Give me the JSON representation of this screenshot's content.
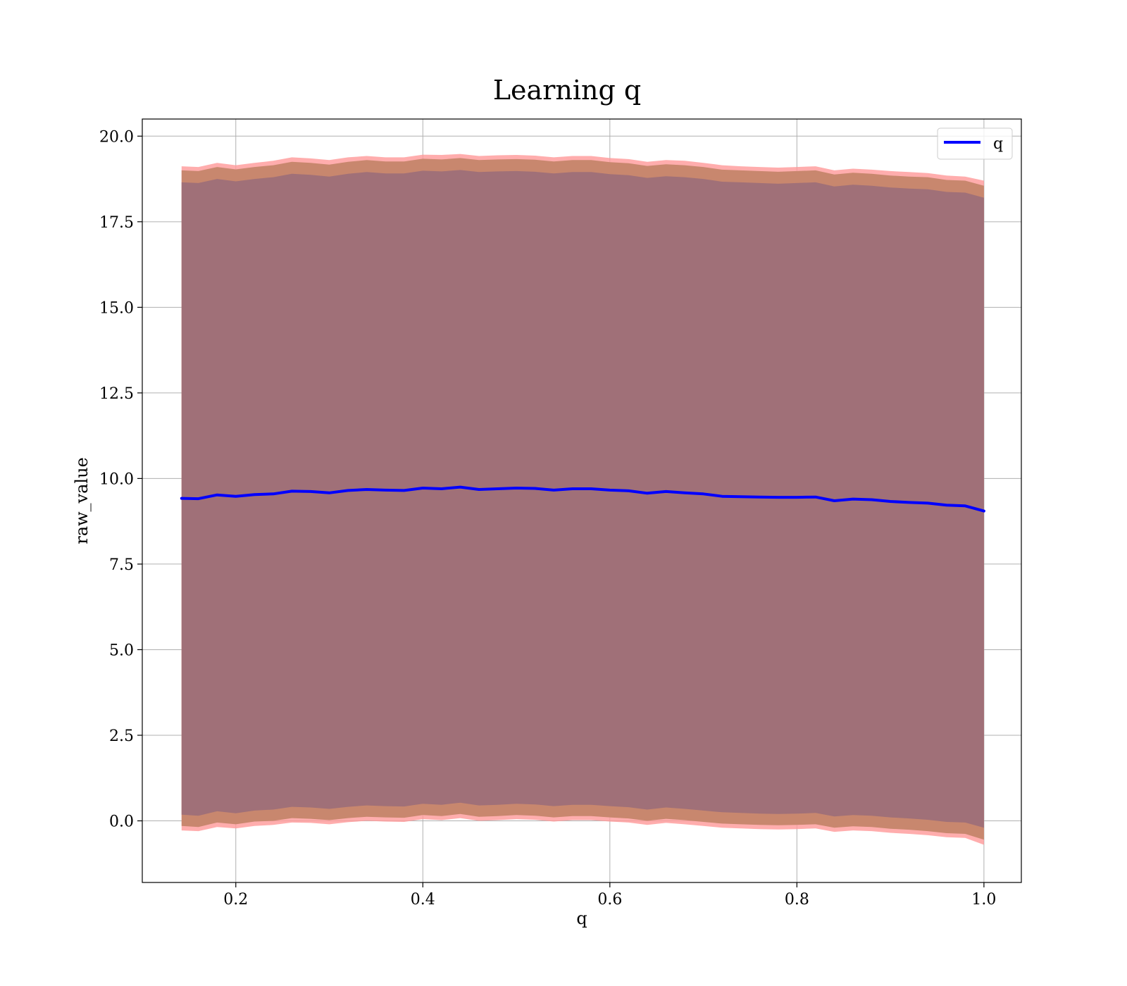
{
  "chart_data": {
    "type": "area",
    "title": "Learning q",
    "xlabel": "q",
    "ylabel": "raw_value",
    "xlim": [
      0.1,
      1.04
    ],
    "ylim": [
      -1.8,
      20.5
    ],
    "xticks": [
      0.2,
      0.4,
      0.6,
      0.8,
      1.0
    ],
    "xtick_labels": [
      "0.2",
      "0.4",
      "0.6",
      "0.8",
      "1.0"
    ],
    "yticks": [
      0.0,
      2.5,
      5.0,
      7.5,
      10.0,
      12.5,
      15.0,
      17.5,
      20.0
    ],
    "ytick_labels": [
      "0.0",
      "2.5",
      "5.0",
      "7.5",
      "10.0",
      "12.5",
      "15.0",
      "17.5",
      "20.0"
    ],
    "grid": true,
    "legend": {
      "position": "top-right",
      "entries": [
        "q"
      ]
    },
    "colors": {
      "line": "#0000ff",
      "outer_band": "#ff9999",
      "middle_band": "#c8876e",
      "inner_band": "#a07078",
      "grid": "#b0b0b0"
    },
    "x": [
      0.142,
      0.16,
      0.18,
      0.2,
      0.22,
      0.24,
      0.26,
      0.28,
      0.3,
      0.32,
      0.34,
      0.36,
      0.38,
      0.4,
      0.42,
      0.44,
      0.46,
      0.48,
      0.5,
      0.52,
      0.54,
      0.56,
      0.58,
      0.6,
      0.62,
      0.64,
      0.66,
      0.68,
      0.7,
      0.72,
      0.74,
      0.76,
      0.78,
      0.8,
      0.82,
      0.84,
      0.86,
      0.88,
      0.9,
      0.92,
      0.94,
      0.96,
      0.98,
      1.0
    ],
    "series": [
      {
        "name": "q",
        "values": [
          9.42,
          9.41,
          9.52,
          9.48,
          9.53,
          9.55,
          9.63,
          9.62,
          9.58,
          9.65,
          9.68,
          9.66,
          9.65,
          9.72,
          9.7,
          9.75,
          9.68,
          9.7,
          9.72,
          9.71,
          9.66,
          9.7,
          9.7,
          9.66,
          9.64,
          9.57,
          9.62,
          9.58,
          9.55,
          9.48,
          9.47,
          9.46,
          9.45,
          9.45,
          9.46,
          9.35,
          9.4,
          9.38,
          9.33,
          9.3,
          9.28,
          9.22,
          9.2,
          9.05
        ]
      }
    ],
    "bands": [
      {
        "upper": [
          19.12,
          19.1,
          19.22,
          19.15,
          19.22,
          19.28,
          19.38,
          19.35,
          19.3,
          19.38,
          19.42,
          19.38,
          19.38,
          19.46,
          19.45,
          19.48,
          19.42,
          19.44,
          19.45,
          19.43,
          19.38,
          19.42,
          19.42,
          19.36,
          19.33,
          19.25,
          19.3,
          19.28,
          19.22,
          19.15,
          19.12,
          19.1,
          19.08,
          19.1,
          19.12,
          19.0,
          19.05,
          19.02,
          18.98,
          18.95,
          18.92,
          18.85,
          18.82,
          18.7
        ],
        "lower": [
          -0.28,
          -0.3,
          -0.18,
          -0.22,
          -0.15,
          -0.12,
          -0.05,
          -0.06,
          -0.1,
          -0.04,
          0.0,
          -0.02,
          -0.03,
          0.05,
          0.02,
          0.08,
          0.0,
          0.02,
          0.05,
          0.03,
          -0.02,
          0.02,
          0.02,
          -0.02,
          -0.05,
          -0.12,
          -0.06,
          -0.1,
          -0.15,
          -0.2,
          -0.22,
          -0.24,
          -0.25,
          -0.24,
          -0.22,
          -0.32,
          -0.28,
          -0.3,
          -0.35,
          -0.38,
          -0.42,
          -0.48,
          -0.5,
          -0.7
        ]
      },
      {
        "upper": [
          19.0,
          18.98,
          19.1,
          19.03,
          19.1,
          19.15,
          19.25,
          19.22,
          19.17,
          19.25,
          19.3,
          19.26,
          19.26,
          19.34,
          19.32,
          19.36,
          19.3,
          19.32,
          19.33,
          19.31,
          19.26,
          19.3,
          19.3,
          19.24,
          19.21,
          19.13,
          19.18,
          19.15,
          19.1,
          19.02,
          19.0,
          18.98,
          18.96,
          18.98,
          19.0,
          18.88,
          18.93,
          18.9,
          18.85,
          18.82,
          18.8,
          18.72,
          18.7,
          18.55
        ],
        "lower": [
          -0.15,
          -0.18,
          -0.05,
          -0.1,
          -0.02,
          0.0,
          0.08,
          0.06,
          0.02,
          0.08,
          0.12,
          0.1,
          0.09,
          0.17,
          0.14,
          0.2,
          0.12,
          0.14,
          0.17,
          0.15,
          0.1,
          0.14,
          0.14,
          0.1,
          0.07,
          0.0,
          0.06,
          0.02,
          -0.03,
          -0.08,
          -0.1,
          -0.12,
          -0.13,
          -0.12,
          -0.1,
          -0.2,
          -0.16,
          -0.18,
          -0.23,
          -0.26,
          -0.3,
          -0.36,
          -0.38,
          -0.55
        ]
      },
      {
        "upper": [
          18.65,
          18.63,
          18.75,
          18.68,
          18.75,
          18.8,
          18.9,
          18.87,
          18.82,
          18.9,
          18.95,
          18.91,
          18.91,
          18.99,
          18.97,
          19.01,
          18.95,
          18.97,
          18.98,
          18.96,
          18.91,
          18.95,
          18.95,
          18.89,
          18.86,
          18.78,
          18.83,
          18.8,
          18.75,
          18.67,
          18.65,
          18.63,
          18.61,
          18.63,
          18.65,
          18.53,
          18.58,
          18.55,
          18.5,
          18.47,
          18.45,
          18.37,
          18.35,
          18.2
        ],
        "lower": [
          0.18,
          0.15,
          0.28,
          0.22,
          0.3,
          0.33,
          0.41,
          0.39,
          0.35,
          0.41,
          0.45,
          0.43,
          0.42,
          0.5,
          0.47,
          0.53,
          0.45,
          0.47,
          0.5,
          0.48,
          0.43,
          0.47,
          0.47,
          0.43,
          0.4,
          0.33,
          0.39,
          0.35,
          0.3,
          0.25,
          0.23,
          0.21,
          0.2,
          0.21,
          0.23,
          0.13,
          0.17,
          0.15,
          0.1,
          0.07,
          0.03,
          -0.03,
          -0.05,
          -0.2
        ]
      }
    ]
  }
}
